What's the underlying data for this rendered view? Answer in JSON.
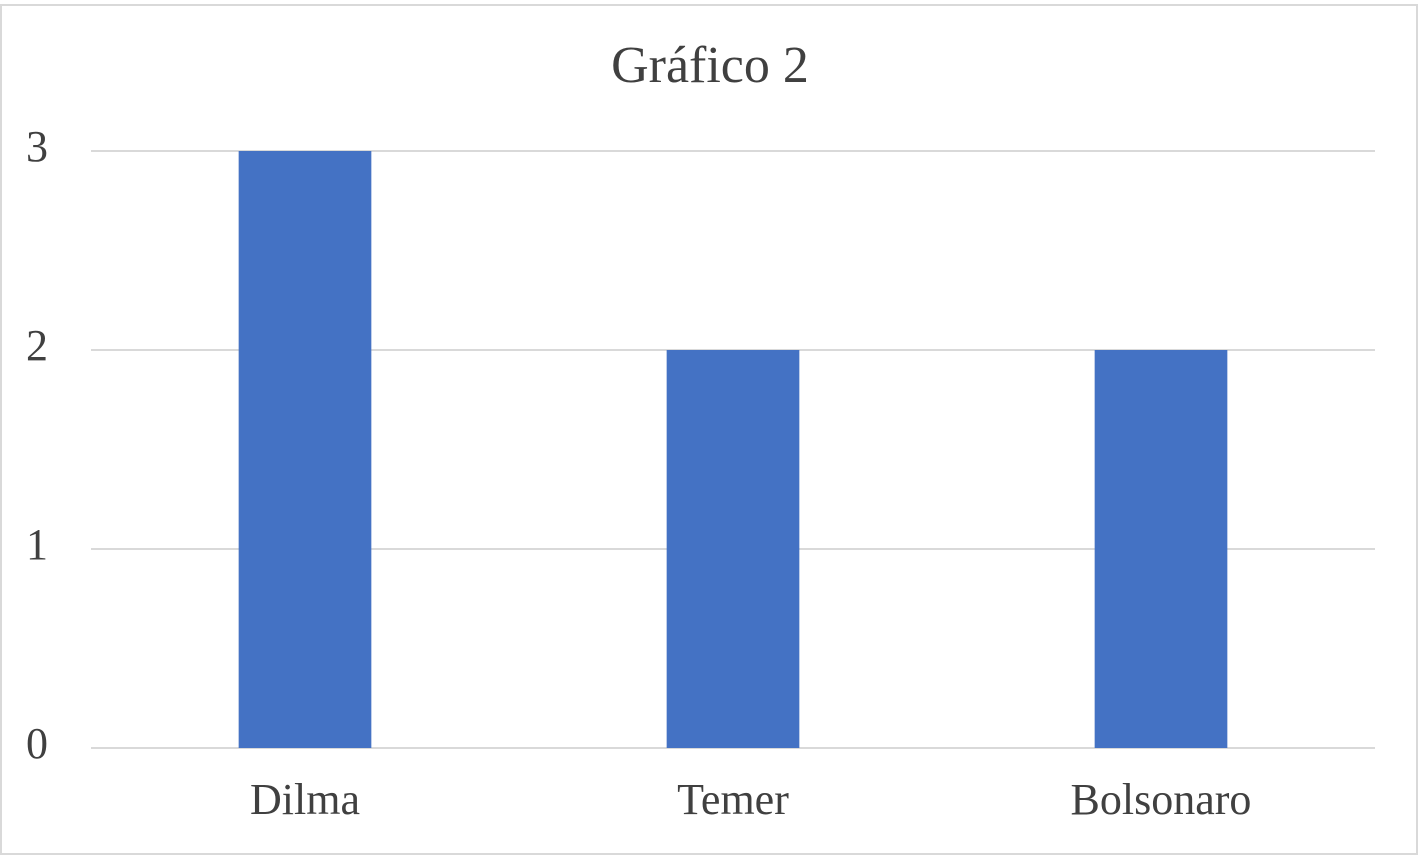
{
  "chart_data": {
    "type": "bar",
    "title": "Gráfico 2",
    "categories": [
      "Dilma",
      "Temer",
      "Bolsonaro"
    ],
    "values": [
      3,
      2,
      2
    ],
    "color": "#4472c4",
    "ylim": [
      0,
      3
    ],
    "yticks": [
      0,
      1,
      2,
      3
    ],
    "grid": true
  }
}
